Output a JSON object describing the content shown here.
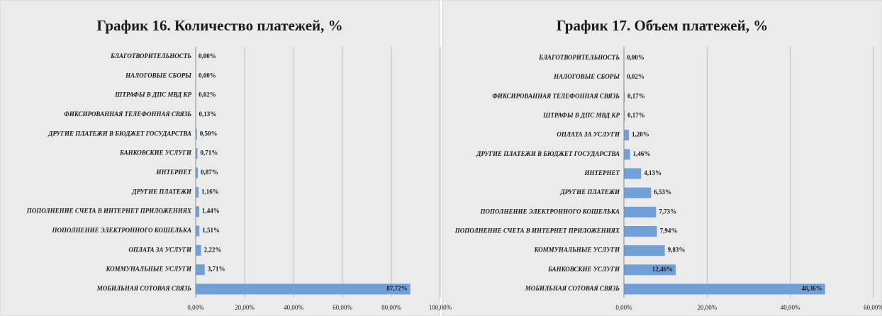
{
  "chart_data": [
    {
      "type": "bar",
      "orientation": "horizontal",
      "title": "График 16. Количество платежей, %",
      "categories": [
        "БЛАГОТВОРИТЕЛЬНОСТЬ",
        "НАЛОГОВЫЕ СБОРЫ",
        "ШТРАФЫ В ДПС МВД КР",
        "ФИКСИРОВАННАЯ ТЕЛЕФОННАЯ СВЯЗЬ",
        "ДРУГИЕ ПЛАТЕЖИ В БЮДЖЕТ ГОСУДАРСТВА",
        "БАНКОВСКИЕ УСЛУГИ",
        "ИНТЕРНЕТ",
        "ДРУГИЕ ПЛАТЕЖИ",
        "ПОПОЛНЕНИЕ СЧЕТА В ИНТЕРНЕТ ПРИЛОЖЕНИЯХ",
        "ПОПОЛНЕНИЕ ЭЛЕКТРОННОГО КОШЕЛЬКА",
        "ОПЛАТА ЗА УСЛУГИ",
        "КОММУНАЛЬНЫЕ УСЛУГИ",
        "МОБИЛЬНАЯ СОТОВАЯ СВЯЗЬ"
      ],
      "values": [
        0,
        0,
        0.02,
        0.13,
        0.5,
        0.71,
        0.87,
        1.16,
        1.44,
        1.51,
        2.22,
        3.71,
        87.72
      ],
      "value_labels": [
        "0,00%",
        "0,00%",
        "0,02%",
        "0,13%",
        "0,50%",
        "0,71%",
        "0,87%",
        "1,16%",
        "1,44%",
        "1,51%",
        "2,22%",
        "3,71%",
        "87,72%"
      ],
      "color": "#6fa0d8",
      "xlim": [
        0,
        100
      ],
      "xticks": [
        {
          "value": 0,
          "label": "0,00%"
        },
        {
          "value": 20,
          "label": "20,00%"
        },
        {
          "value": 40,
          "label": "40,00%"
        },
        {
          "value": 60,
          "label": "60,00%"
        },
        {
          "value": 80,
          "label": "80,00%"
        },
        {
          "value": 100,
          "label": "100,00%"
        }
      ],
      "grid": true
    },
    {
      "type": "bar",
      "orientation": "horizontal",
      "title": "График 17. Объем платежей, %",
      "categories": [
        "БЛАГОТВОРИТЕЛЬНОСТЬ",
        "НАЛОГОВЫЕ СБОРЫ",
        "ФИКСИРОВАННАЯ ТЕЛЕФОННАЯ СВЯЗЬ",
        "ШТРАФЫ В ДПС МВД КР",
        "ОПЛАТА ЗА УСЛУГИ",
        "ДРУГИЕ ПЛАТЕЖИ В БЮДЖЕТ ГОСУДАРСТВА",
        "ИНТЕРНЕТ",
        "ДРУГИЕ ПЛАТЕЖИ",
        "ПОПОЛНЕНИЕ ЭЛЕКТРОННОГО КОШЕЛЬКА",
        "ПОПОЛНЕНИЕ СЧЕТА В ИНТЕРНЕТ ПРИЛОЖЕНИЯХ",
        "КОММУНАЛЬНЫЕ УСЛУГИ",
        "БАНКОВСКИЕ УСЛУГИ",
        "МОБИЛЬНАЯ СОТОВАЯ СВЯЗЬ"
      ],
      "values": [
        0,
        0.02,
        0.17,
        0.17,
        1.2,
        1.46,
        4.13,
        6.53,
        7.73,
        7.94,
        9.83,
        12.46,
        48.36
      ],
      "value_labels": [
        "0,00%",
        "0,02%",
        "0,17%",
        "0,17%",
        "1,20%",
        "1,46%",
        "4,13%",
        "6,53%",
        "7,73%",
        "7,94%",
        "9,83%",
        "12,46%",
        "48,36%"
      ],
      "color": "#6fa0d8",
      "xlim": [
        0,
        60
      ],
      "xticks": [
        {
          "value": 0,
          "label": "0,00%"
        },
        {
          "value": 20,
          "label": "20,00%"
        },
        {
          "value": 40,
          "label": "40,00%"
        },
        {
          "value": 60,
          "label": "60,00%"
        }
      ],
      "grid": true
    }
  ]
}
